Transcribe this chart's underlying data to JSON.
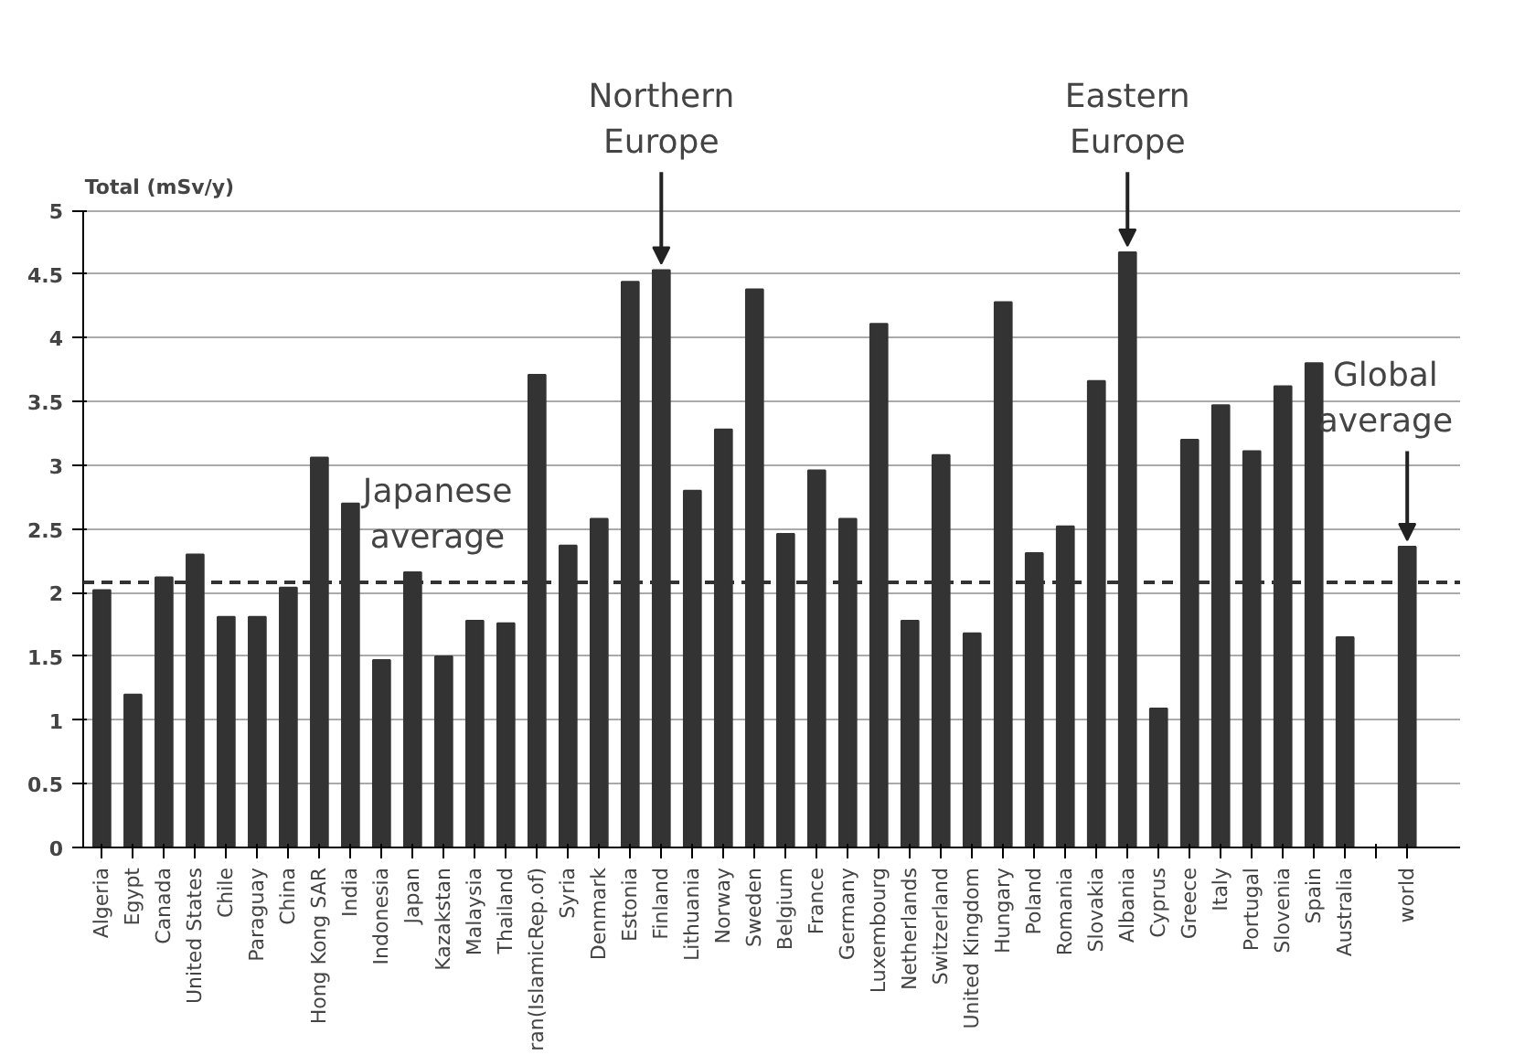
{
  "chart_data": {
    "type": "bar",
    "ylabel": "Total (mSv/y)",
    "categories": [
      "Algeria",
      "Egypt",
      "Canada",
      "United States",
      "Chile",
      "Paraguay",
      "China",
      "Hong Kong SAR",
      "India",
      "Indonesia",
      "Japan",
      "Kazakstan",
      "Malaysia",
      "Thailand",
      "ran(IslamicRep.of)",
      "Syria",
      "Denmark",
      "Estonia",
      "Finland",
      "Lithuania",
      "Norway",
      "Sweden",
      "Belgium",
      "France",
      "Germany",
      "Luxembourg",
      "Netherlands",
      "Switzerland",
      "United Kingdom",
      "Hungary",
      "Poland",
      "Romania",
      "Slovakia",
      "Albania",
      "Cyprus",
      "Greece",
      "Italy",
      "Portugal",
      "Slovenia",
      "Spain",
      "Australia",
      null,
      "world"
    ],
    "values": [
      2.02,
      1.2,
      2.12,
      2.3,
      1.81,
      1.81,
      2.04,
      3.06,
      2.7,
      1.47,
      2.16,
      1.5,
      1.78,
      1.76,
      3.71,
      2.37,
      2.58,
      4.44,
      4.53,
      2.8,
      3.28,
      4.38,
      2.46,
      2.96,
      2.58,
      4.11,
      1.78,
      3.08,
      1.68,
      4.28,
      2.31,
      2.52,
      3.66,
      4.67,
      1.09,
      3.2,
      3.47,
      3.11,
      3.62,
      3.8,
      1.65,
      null,
      2.36
    ],
    "color": "#333333",
    "ylim": [
      0,
      5
    ],
    "yticks": [
      0,
      0.5,
      1,
      1.5,
      2,
      2.5,
      3,
      3.5,
      4,
      4.5,
      5
    ],
    "grid": "y",
    "ref_lines": [
      {
        "axis": "y",
        "value": 2.08,
        "label": "Japanese average",
        "color": "#333333",
        "line_style": "dashed"
      }
    ],
    "annotations": [
      {
        "text": "Northern Europe",
        "x": "Finland",
        "y": 4.53
      },
      {
        "text": "Eastern Europe",
        "x": "Albania",
        "y": 4.67
      },
      {
        "text": "Global average",
        "x": "world",
        "y": 2.36
      }
    ]
  }
}
